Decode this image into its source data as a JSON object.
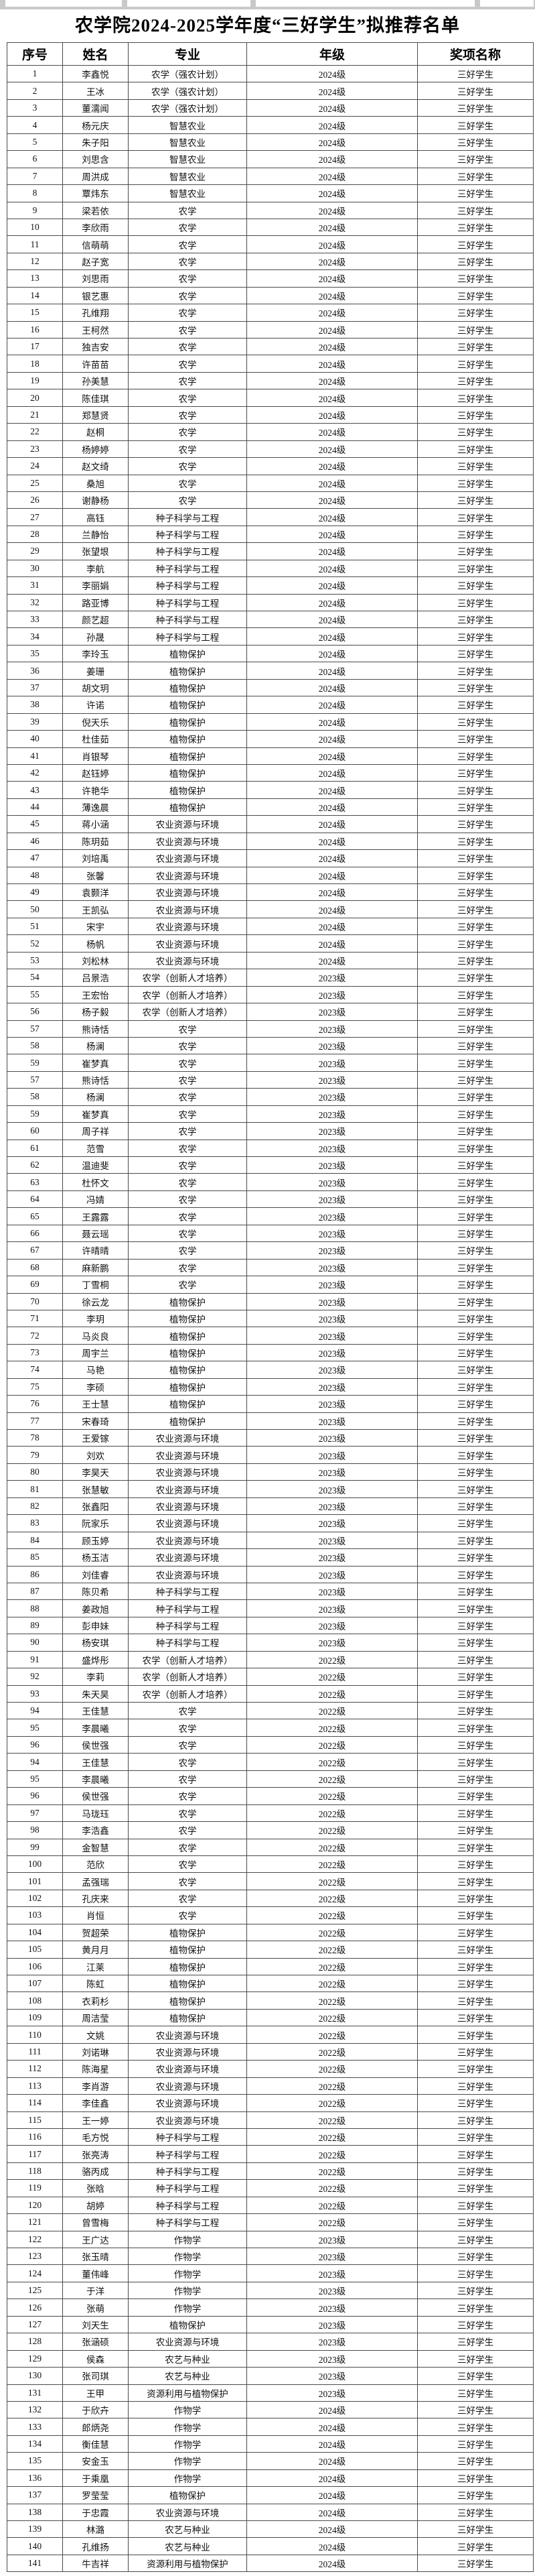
{
  "page": {
    "title": "农学院2024-2025学年度“三好学生”拟推荐名单"
  },
  "table": {
    "headers": [
      "序号",
      "姓名",
      "专业",
      "年级",
      "奖项名称"
    ],
    "rows": [
      [
        1,
        "李鑫悦",
        "农学（强农计划）",
        "2024级",
        "三好学生"
      ],
      [
        2,
        "王冰",
        "农学（强农计划）",
        "2024级",
        "三好学生"
      ],
      [
        3,
        "董濡闻",
        "农学（强农计划）",
        "2024级",
        "三好学生"
      ],
      [
        4,
        "杨元庆",
        "智慧农业",
        "2024级",
        "三好学生"
      ],
      [
        5,
        "朱子阳",
        "智慧农业",
        "2024级",
        "三好学生"
      ],
      [
        6,
        "刘思含",
        "智慧农业",
        "2024级",
        "三好学生"
      ],
      [
        7,
        "周洪成",
        "智慧农业",
        "2024级",
        "三好学生"
      ],
      [
        8,
        "覃炜东",
        "智慧农业",
        "2024级",
        "三好学生"
      ],
      [
        9,
        "梁若依",
        "农学",
        "2024级",
        "三好学生"
      ],
      [
        10,
        "李欣雨",
        "农学",
        "2024级",
        "三好学生"
      ],
      [
        11,
        "信萌萌",
        "农学",
        "2024级",
        "三好学生"
      ],
      [
        12,
        "赵子宽",
        "农学",
        "2024级",
        "三好学生"
      ],
      [
        13,
        "刘思雨",
        "农学",
        "2024级",
        "三好学生"
      ],
      [
        14,
        "银艺惠",
        "农学",
        "2024级",
        "三好学生"
      ],
      [
        15,
        "孔维翔",
        "农学",
        "2024级",
        "三好学生"
      ],
      [
        16,
        "王柯然",
        "农学",
        "2024级",
        "三好学生"
      ],
      [
        17,
        "独吉安",
        "农学",
        "2024级",
        "三好学生"
      ],
      [
        18,
        "许苗苗",
        "农学",
        "2024级",
        "三好学生"
      ],
      [
        19,
        "孙美慧",
        "农学",
        "2024级",
        "三好学生"
      ],
      [
        20,
        "陈佳琪",
        "农学",
        "2024级",
        "三好学生"
      ],
      [
        21,
        "郑慧贤",
        "农学",
        "2024级",
        "三好学生"
      ],
      [
        22,
        "赵桐",
        "农学",
        "2024级",
        "三好学生"
      ],
      [
        23,
        "杨婷婷",
        "农学",
        "2024级",
        "三好学生"
      ],
      [
        24,
        "赵文绮",
        "农学",
        "2024级",
        "三好学生"
      ],
      [
        25,
        "桑旭",
        "农学",
        "2024级",
        "三好学生"
      ],
      [
        26,
        "谢静杨",
        "农学",
        "2024级",
        "三好学生"
      ],
      [
        27,
        "高钰",
        "种子科学与工程",
        "2024级",
        "三好学生"
      ],
      [
        28,
        "兰静怡",
        "种子科学与工程",
        "2024级",
        "三好学生"
      ],
      [
        29,
        "张望垠",
        "种子科学与工程",
        "2024级",
        "三好学生"
      ],
      [
        30,
        "李航",
        "种子科学与工程",
        "2024级",
        "三好学生"
      ],
      [
        31,
        "李丽娟",
        "种子科学与工程",
        "2024级",
        "三好学生"
      ],
      [
        32,
        "路亚博",
        "种子科学与工程",
        "2024级",
        "三好学生"
      ],
      [
        33,
        "颜艺超",
        "种子科学与工程",
        "2024级",
        "三好学生"
      ],
      [
        34,
        "孙晟",
        "种子科学与工程",
        "2024级",
        "三好学生"
      ],
      [
        35,
        "李玲玉",
        "植物保护",
        "2024级",
        "三好学生"
      ],
      [
        36,
        "姜珊",
        "植物保护",
        "2024级",
        "三好学生"
      ],
      [
        37,
        "胡文玥",
        "植物保护",
        "2024级",
        "三好学生"
      ],
      [
        38,
        "许诺",
        "植物保护",
        "2024级",
        "三好学生"
      ],
      [
        39,
        "倪天乐",
        "植物保护",
        "2024级",
        "三好学生"
      ],
      [
        40,
        "杜佳茹",
        "植物保护",
        "2024级",
        "三好学生"
      ],
      [
        41,
        "肖银琴",
        "植物保护",
        "2024级",
        "三好学生"
      ],
      [
        42,
        "赵钰婷",
        "植物保护",
        "2024级",
        "三好学生"
      ],
      [
        43,
        "许艳华",
        "植物保护",
        "2024级",
        "三好学生"
      ],
      [
        44,
        "薄逸晨",
        "植物保护",
        "2024级",
        "三好学生"
      ],
      [
        45,
        "蒋小涵",
        "农业资源与环境",
        "2024级",
        "三好学生"
      ],
      [
        46,
        "陈玥茹",
        "农业资源与环境",
        "2024级",
        "三好学生"
      ],
      [
        47,
        "刘培禹",
        "农业资源与环境",
        "2024级",
        "三好学生"
      ],
      [
        48,
        "张馨",
        "农业资源与环境",
        "2024级",
        "三好学生"
      ],
      [
        49,
        "袁颢洋",
        "农业资源与环境",
        "2024级",
        "三好学生"
      ],
      [
        50,
        "王凯弘",
        "农业资源与环境",
        "2024级",
        "三好学生"
      ],
      [
        51,
        "宋宇",
        "农业资源与环境",
        "2024级",
        "三好学生"
      ],
      [
        52,
        "杨帆",
        "农业资源与环境",
        "2024级",
        "三好学生"
      ],
      [
        53,
        "刘松林",
        "农业资源与环境",
        "2024级",
        "三好学生"
      ],
      [
        54,
        "吕景浩",
        "农学（创新人才培养）",
        "2023级",
        "三好学生"
      ],
      [
        55,
        "王宏怡",
        "农学（创新人才培养）",
        "2023级",
        "三好学生"
      ],
      [
        56,
        "杨子毅",
        "农学（创新人才培养）",
        "2023级",
        "三好学生"
      ],
      [
        57,
        "熊诗恬",
        "农学",
        "2023级",
        "三好学生"
      ],
      [
        58,
        "杨澜",
        "农学",
        "2023级",
        "三好学生"
      ],
      [
        59,
        "崔梦真",
        "农学",
        "2023级",
        "三好学生"
      ],
      [
        57,
        "熊诗恬",
        "农学",
        "2023级",
        "三好学生"
      ],
      [
        58,
        "杨澜",
        "农学",
        "2023级",
        "三好学生"
      ],
      [
        59,
        "崔梦真",
        "农学",
        "2023级",
        "三好学生"
      ],
      [
        60,
        "周子祥",
        "农学",
        "2023级",
        "三好学生"
      ],
      [
        61,
        "范雪",
        "农学",
        "2023级",
        "三好学生"
      ],
      [
        62,
        "温迪斐",
        "农学",
        "2023级",
        "三好学生"
      ],
      [
        63,
        "杜怀文",
        "农学",
        "2023级",
        "三好学生"
      ],
      [
        64,
        "冯婧",
        "农学",
        "2023级",
        "三好学生"
      ],
      [
        65,
        "王露露",
        "农学",
        "2023级",
        "三好学生"
      ],
      [
        66,
        "聂云瑶",
        "农学",
        "2023级",
        "三好学生"
      ],
      [
        67,
        "许晴晴",
        "农学",
        "2023级",
        "三好学生"
      ],
      [
        68,
        "麻新鹏",
        "农学",
        "2023级",
        "三好学生"
      ],
      [
        69,
        "丁雪桐",
        "农学",
        "2023级",
        "三好学生"
      ],
      [
        70,
        "徐云龙",
        "植物保护",
        "2023级",
        "三好学生"
      ],
      [
        71,
        "李玥",
        "植物保护",
        "2023级",
        "三好学生"
      ],
      [
        72,
        "马炎良",
        "植物保护",
        "2023级",
        "三好学生"
      ],
      [
        73,
        "周宇兰",
        "植物保护",
        "2023级",
        "三好学生"
      ],
      [
        74,
        "马艳",
        "植物保护",
        "2023级",
        "三好学生"
      ],
      [
        75,
        "李硕",
        "植物保护",
        "2023级",
        "三好学生"
      ],
      [
        76,
        "王士慧",
        "植物保护",
        "2023级",
        "三好学生"
      ],
      [
        77,
        "宋春琦",
        "植物保护",
        "2023级",
        "三好学生"
      ],
      [
        78,
        "王爱镓",
        "农业资源与环境",
        "2023级",
        "三好学生"
      ],
      [
        79,
        "刘欢",
        "农业资源与环境",
        "2023级",
        "三好学生"
      ],
      [
        80,
        "李昊天",
        "农业资源与环境",
        "2023级",
        "三好学生"
      ],
      [
        81,
        "张慧敏",
        "农业资源与环境",
        "2023级",
        "三好学生"
      ],
      [
        82,
        "张鑫阳",
        "农业资源与环境",
        "2023级",
        "三好学生"
      ],
      [
        83,
        "阮家乐",
        "农业资源与环境",
        "2023级",
        "三好学生"
      ],
      [
        84,
        "顾玉婷",
        "农业资源与环境",
        "2023级",
        "三好学生"
      ],
      [
        85,
        "杨玉洁",
        "农业资源与环境",
        "2023级",
        "三好学生"
      ],
      [
        86,
        "刘佳睿",
        "农业资源与环境",
        "2023级",
        "三好学生"
      ],
      [
        87,
        "陈贝希",
        "种子科学与工程",
        "2023级",
        "三好学生"
      ],
      [
        88,
        "姜政旭",
        "种子科学与工程",
        "2023级",
        "三好学生"
      ],
      [
        89,
        "彭申妹",
        "种子科学与工程",
        "2023级",
        "三好学生"
      ],
      [
        90,
        "杨安琪",
        "种子科学与工程",
        "2023级",
        "三好学生"
      ],
      [
        91,
        "盛烨彤",
        "农学（创新人才培养）",
        "2022级",
        "三好学生"
      ],
      [
        92,
        "李莉",
        "农学（创新人才培养）",
        "2022级",
        "三好学生"
      ],
      [
        93,
        "朱天昊",
        "农学（创新人才培养）",
        "2022级",
        "三好学生"
      ],
      [
        94,
        "王佳慧",
        "农学",
        "2022级",
        "三好学生"
      ],
      [
        95,
        "李晨曦",
        "农学",
        "2022级",
        "三好学生"
      ],
      [
        96,
        "侯世强",
        "农学",
        "2022级",
        "三好学生"
      ],
      [
        94,
        "王佳慧",
        "农学",
        "2022级",
        "三好学生"
      ],
      [
        95,
        "李晨曦",
        "农学",
        "2022级",
        "三好学生"
      ],
      [
        96,
        "侯世强",
        "农学",
        "2022级",
        "三好学生"
      ],
      [
        97,
        "马珑珏",
        "农学",
        "2022级",
        "三好学生"
      ],
      [
        98,
        "李浩鑫",
        "农学",
        "2022级",
        "三好学生"
      ],
      [
        99,
        "金智慧",
        "农学",
        "2022级",
        "三好学生"
      ],
      [
        100,
        "范欣",
        "农学",
        "2022级",
        "三好学生"
      ],
      [
        101,
        "孟强瑞",
        "农学",
        "2022级",
        "三好学生"
      ],
      [
        102,
        "孔庆来",
        "农学",
        "2022级",
        "三好学生"
      ],
      [
        103,
        "肖恒",
        "农学",
        "2022级",
        "三好学生"
      ],
      [
        104,
        "贺超荣",
        "植物保护",
        "2022级",
        "三好学生"
      ],
      [
        105,
        "黄月月",
        "植物保护",
        "2022级",
        "三好学生"
      ],
      [
        106,
        "江莱",
        "植物保护",
        "2022级",
        "三好学生"
      ],
      [
        107,
        "陈虹",
        "植物保护",
        "2022级",
        "三好学生"
      ],
      [
        108,
        "衣莉杉",
        "植物保护",
        "2022级",
        "三好学生"
      ],
      [
        109,
        "周洁莹",
        "植物保护",
        "2022级",
        "三好学生"
      ],
      [
        110,
        "文姚",
        "农业资源与环境",
        "2022级",
        "三好学生"
      ],
      [
        111,
        "刘诺琳",
        "农业资源与环境",
        "2022级",
        "三好学生"
      ],
      [
        112,
        "陈海星",
        "农业资源与环境",
        "2022级",
        "三好学生"
      ],
      [
        113,
        "李肖游",
        "农业资源与环境",
        "2022级",
        "三好学生"
      ],
      [
        114,
        "李佳鑫",
        "农业资源与环境",
        "2022级",
        "三好学生"
      ],
      [
        115,
        "王一婷",
        "农业资源与环境",
        "2022级",
        "三好学生"
      ],
      [
        116,
        "毛方悦",
        "种子科学与工程",
        "2022级",
        "三好学生"
      ],
      [
        117,
        "张亮涛",
        "种子科学与工程",
        "2022级",
        "三好学生"
      ],
      [
        118,
        "骆丙成",
        "种子科学与工程",
        "2022级",
        "三好学生"
      ],
      [
        119,
        "张晗",
        "种子科学与工程",
        "2022级",
        "三好学生"
      ],
      [
        120,
        "胡婷",
        "种子科学与工程",
        "2022级",
        "三好学生"
      ],
      [
        121,
        "曾雪梅",
        "种子科学与工程",
        "2022级",
        "三好学生"
      ],
      [
        122,
        "王广达",
        "作物学",
        "2023级",
        "三好学生"
      ],
      [
        123,
        "张玉晴",
        "作物学",
        "2023级",
        "三好学生"
      ],
      [
        124,
        "董伟峰",
        "作物学",
        "2023级",
        "三好学生"
      ],
      [
        125,
        "于洋",
        "作物学",
        "2023级",
        "三好学生"
      ],
      [
        126,
        "张萌",
        "作物学",
        "2023级",
        "三好学生"
      ],
      [
        127,
        "刘天生",
        "植物保护",
        "2023级",
        "三好学生"
      ],
      [
        128,
        "张涵硕",
        "农业资源与环境",
        "2023级",
        "三好学生"
      ],
      [
        129,
        "侯森",
        "农艺与种业",
        "2023级",
        "三好学生"
      ],
      [
        130,
        "张司琪",
        "农艺与种业",
        "2023级",
        "三好学生"
      ],
      [
        131,
        "王甲",
        "资源利用与植物保护",
        "2023级",
        "三好学生"
      ],
      [
        132,
        "于欣卉",
        "作物学",
        "2024级",
        "三好学生"
      ],
      [
        133,
        "郎炳尧",
        "作物学",
        "2024级",
        "三好学生"
      ],
      [
        134,
        "衡佳慧",
        "作物学",
        "2024级",
        "三好学生"
      ],
      [
        135,
        "安金玉",
        "作物学",
        "2024级",
        "三好学生"
      ],
      [
        136,
        "于乘凰",
        "作物学",
        "2024级",
        "三好学生"
      ],
      [
        137,
        "罗莹莹",
        "植物保护",
        "2024级",
        "三好学生"
      ],
      [
        138,
        "于忠霞",
        "农业资源与环境",
        "2024级",
        "三好学生"
      ],
      [
        139,
        "林潞",
        "农艺与种业",
        "2024级",
        "三好学生"
      ],
      [
        140,
        "孔维扬",
        "农艺与种业",
        "2024级",
        "三好学生"
      ],
      [
        141,
        "牛吉祥",
        "资源利用与植物保护",
        "2024级",
        "三好学生"
      ]
    ]
  }
}
